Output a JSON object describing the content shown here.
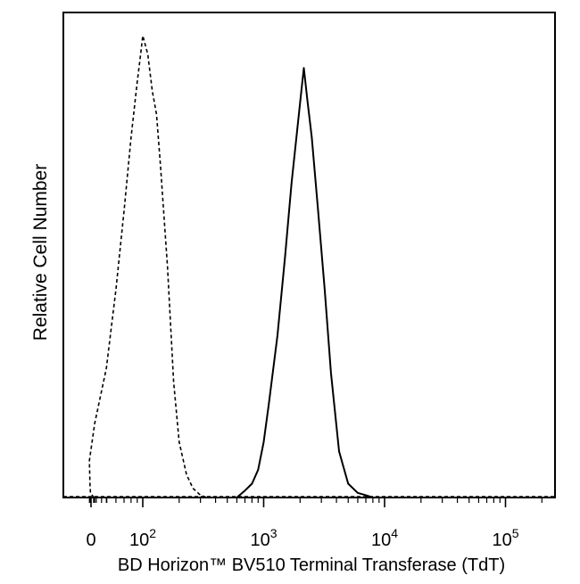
{
  "chart_data": {
    "type": "histogram",
    "title": "",
    "xlabel": "BD Horizon™ BV510  Terminal Transferase (TdT)",
    "ylabel": "Relative Cell Number",
    "x_scale": "biexponential",
    "xlim": [
      -300,
      250000
    ],
    "ylim": [
      0,
      100
    ],
    "x_ticks": [
      {
        "value": 0,
        "label": "0"
      },
      {
        "value": 100,
        "label": "10",
        "exp": "2"
      },
      {
        "value": 1000,
        "label": "10",
        "exp": "3"
      },
      {
        "value": 10000,
        "label": "10",
        "exp": "4"
      },
      {
        "value": 100000,
        "label": "10",
        "exp": "5"
      }
    ],
    "grid": false,
    "legend": "none",
    "series": [
      {
        "style": "dashed",
        "x": [
          -60,
          -20,
          10,
          20,
          30,
          40,
          50,
          60,
          70,
          80,
          90,
          95,
          100,
          110,
          120,
          130,
          140,
          160,
          180,
          200,
          230,
          260,
          300,
          340
        ],
        "y": [
          0,
          0.5,
          1,
          3,
          8,
          16,
          28,
          45,
          62,
          78,
          90,
          95,
          100,
          96,
          88,
          83,
          72,
          50,
          25,
          12,
          5,
          2,
          0.5,
          0
        ]
      },
      {
        "style": "solid",
        "x": [
          600,
          700,
          800,
          900,
          1000,
          1100,
          1300,
          1500,
          1700,
          1900,
          2050,
          2150,
          2300,
          2500,
          2800,
          3200,
          3600,
          4200,
          5000,
          6000,
          7000,
          8000
        ],
        "y": [
          0,
          1.5,
          3,
          6,
          12,
          20,
          35,
          52,
          68,
          80,
          88,
          93,
          86,
          78,
          63,
          45,
          27,
          10,
          3,
          1,
          0.5,
          0
        ]
      }
    ]
  }
}
